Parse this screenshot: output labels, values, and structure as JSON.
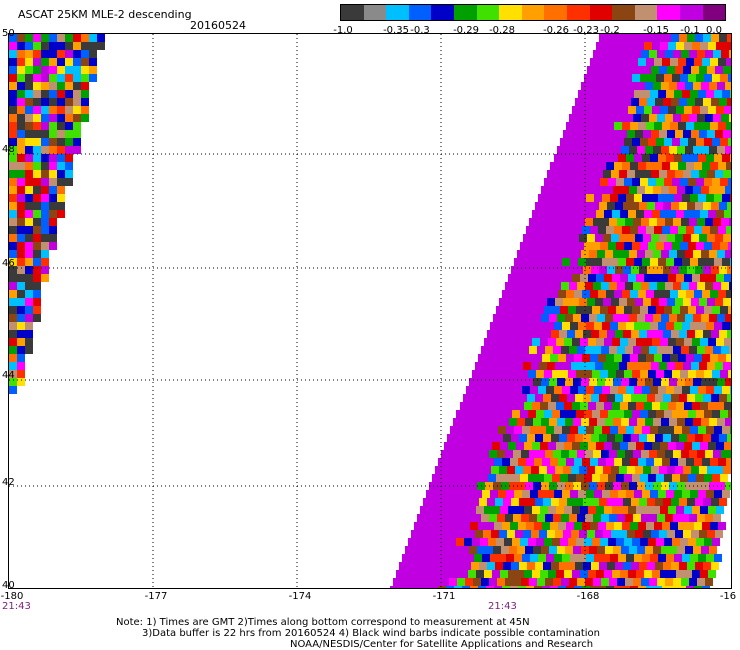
{
  "header": {
    "title": "ASCAT 25KM MLE-2 descending",
    "date": "20160524"
  },
  "colorbar": {
    "colors": [
      "#3a3a3a",
      "#8a8a8a",
      "#00bfff",
      "#0060ff",
      "#0000c8",
      "#00a000",
      "#40e000",
      "#ffe000",
      "#ffa000",
      "#ff7000",
      "#ff3000",
      "#e00000",
      "#8b4513",
      "#c09070",
      "#ff00ff",
      "#c000e0",
      "#800080"
    ],
    "labels": [
      "-1.0",
      "-0.35",
      "-0.3",
      "-0.29",
      "-0.28",
      "-0.26",
      "-0.23",
      "-0.2",
      "-0.15",
      "-0.1",
      "0.0"
    ]
  },
  "axes": {
    "y_labels": [
      "50",
      "48",
      "46",
      "44",
      "42",
      "40"
    ],
    "x_labels": [
      "-180",
      "-177",
      "-174",
      "-171",
      "-168",
      "-16"
    ],
    "time_labels": [
      "21:43",
      "21:43"
    ]
  },
  "notes": {
    "line1": "Note: 1) Times are GMT 2)Times along bottom correspond to measurement at 45N",
    "line2": "3)Data buffer is 22 hrs from 20160524 4) Black wind barbs indicate possible contamination",
    "line3": "NOAA/NESDIS/Center for Satellite Applications and Research"
  }
}
